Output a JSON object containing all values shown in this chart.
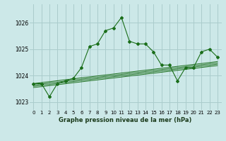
{
  "title": "Graphe pression niveau de la mer (hPa)",
  "bg_color": "#cce8e8",
  "grid_color": "#aacccc",
  "line_color": "#1a6e1a",
  "xlim": [
    -0.5,
    23.5
  ],
  "ylim": [
    1022.7,
    1026.7
  ],
  "xticks": [
    0,
    1,
    2,
    3,
    4,
    5,
    6,
    7,
    8,
    9,
    10,
    11,
    12,
    13,
    14,
    15,
    16,
    17,
    18,
    19,
    20,
    21,
    22,
    23
  ],
  "yticks": [
    1023,
    1024,
    1025,
    1026
  ],
  "main_x": [
    0,
    1,
    2,
    3,
    4,
    5,
    6,
    7,
    8,
    9,
    10,
    11,
    12,
    13,
    14,
    15,
    16,
    17,
    18,
    19,
    20,
    21,
    22,
    23
  ],
  "main_y": [
    1023.7,
    1023.7,
    1023.2,
    1023.7,
    1023.8,
    1023.9,
    1024.3,
    1025.1,
    1025.2,
    1025.7,
    1025.8,
    1026.2,
    1025.3,
    1025.2,
    1025.2,
    1024.9,
    1024.4,
    1024.4,
    1023.8,
    1024.3,
    1024.3,
    1024.9,
    1025.0,
    1024.7
  ],
  "trend_lines": [
    {
      "x": [
        0,
        23
      ],
      "y": [
        1023.55,
        1024.38
      ]
    },
    {
      "x": [
        0,
        23
      ],
      "y": [
        1023.6,
        1024.43
      ]
    },
    {
      "x": [
        0,
        23
      ],
      "y": [
        1023.65,
        1024.48
      ]
    },
    {
      "x": [
        0,
        23
      ],
      "y": [
        1023.7,
        1024.53
      ]
    }
  ]
}
